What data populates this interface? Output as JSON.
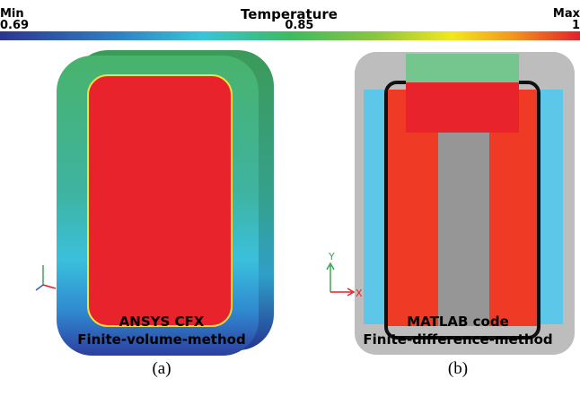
{
  "colorbar": {
    "title": "Temperature",
    "min_label": "Min",
    "max_label": "Max",
    "ticks": [
      0.69,
      0.85,
      1
    ]
  },
  "panels": [
    {
      "caption_line1": "ANSYS CFX",
      "caption_line2": "Finite-volume-method",
      "label": "(a)"
    },
    {
      "caption_line1": "MATLAB code",
      "caption_line2": "Finite-difference-method",
      "label": "(b)",
      "axis_y": "Y",
      "axis_x": "X"
    }
  ]
}
